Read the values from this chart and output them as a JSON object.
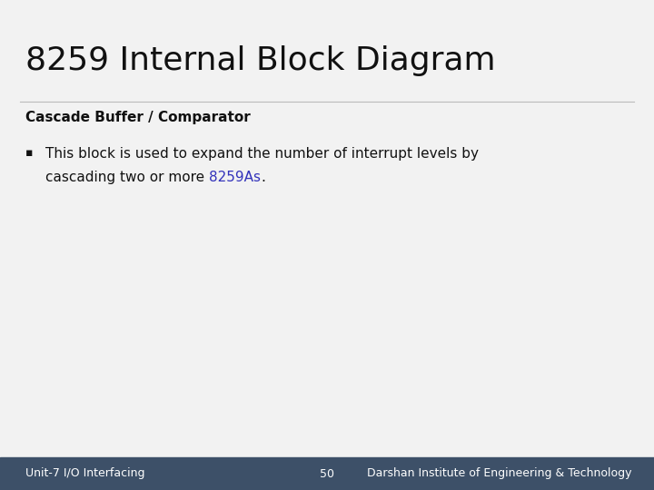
{
  "title": "8259 Internal Block Diagram",
  "subtitle": "Cascade Buffer / Comparator",
  "line1": "This block is used to expand the number of interrupt levels by",
  "line2_pre": "cascading two or more ",
  "bullet_link": "8259As",
  "bullet_end": ".",
  "footer_left": "Unit-7 I/O Interfacing",
  "footer_center": "50",
  "footer_right": "Darshan Institute of Engineering & Technology",
  "bg_color": "#f2f2f2",
  "footer_bg_color": "#3d5068",
  "footer_text_color": "#ffffff",
  "title_color": "#111111",
  "subtitle_color": "#111111",
  "body_text_color": "#111111",
  "link_color": "#3333bb",
  "separator_color": "#bbbbbb",
  "title_fontsize": 26,
  "subtitle_fontsize": 11,
  "body_fontsize": 11,
  "footer_fontsize": 9
}
